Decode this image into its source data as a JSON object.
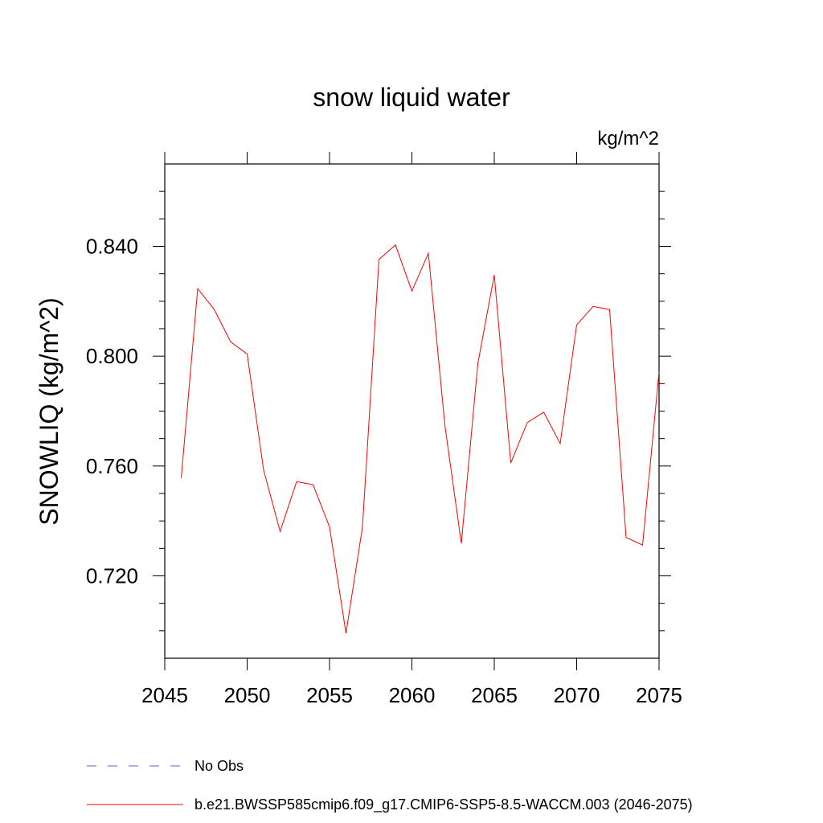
{
  "chart_data": {
    "type": "line",
    "title": "snow liquid water",
    "units_label": "kg/m^2",
    "ylabel": "SNOWLIQ  (kg/m^2)",
    "xlabel": "",
    "xlim": [
      2045,
      2075
    ],
    "ylim": [
      0.69,
      0.87
    ],
    "xticks": [
      2045,
      2050,
      2055,
      2060,
      2065,
      2070,
      2075
    ],
    "xtick_labels": [
      "2045",
      "2050",
      "2055",
      "2060",
      "2065",
      "2070",
      "2075"
    ],
    "yticks": [
      0.72,
      0.76,
      0.8,
      0.84
    ],
    "ytick_labels": [
      "0.720",
      "0.760",
      "0.800",
      "0.840"
    ],
    "grid": false,
    "legend_position": "bottom",
    "series": [
      {
        "name": "b.e21.BWSSP585cmip6.f09_g17.CMIP6-SSP5-8.5-WACCM.003 (2046-2075)",
        "color": "#ff0000",
        "style": "solid",
        "x": [
          2046,
          2047,
          2048,
          2049,
          2050,
          2051,
          2052,
          2053,
          2054,
          2055,
          2056,
          2057,
          2058,
          2059,
          2060,
          2061,
          2062,
          2063,
          2064,
          2065,
          2066,
          2067,
          2068,
          2069,
          2070,
          2071,
          2072,
          2073,
          2074,
          2075
        ],
        "values": [
          0.7556,
          0.8246,
          0.817,
          0.8052,
          0.8008,
          0.7585,
          0.7362,
          0.7543,
          0.7532,
          0.7378,
          0.6991,
          0.7378,
          0.8352,
          0.8405,
          0.8237,
          0.8375,
          0.7749,
          0.7318,
          0.7972,
          0.8296,
          0.7611,
          0.7758,
          0.7796,
          0.7682,
          0.8114,
          0.8181,
          0.817,
          0.734,
          0.7312,
          0.7943
        ]
      },
      {
        "name": "No Obs",
        "color": "#6a5acd",
        "style": "dashed",
        "x": [],
        "values": []
      }
    ]
  }
}
